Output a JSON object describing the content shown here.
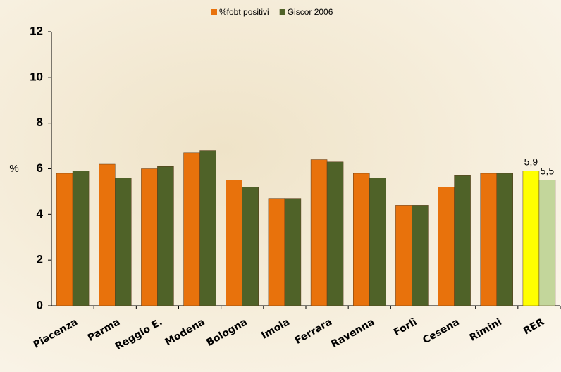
{
  "chart_data": {
    "type": "bar",
    "y_label": "%",
    "categories": [
      "Piacenza",
      "Parma",
      "Reggio E.",
      "Modena",
      "Bologna",
      "Imola",
      "Ferrara",
      "Ravenna",
      "Forlì",
      "Cesena",
      "Rimini",
      "RER"
    ],
    "series": [
      {
        "name": "%fobt positivi",
        "color": "#e8720c",
        "colors": [
          "#e8720c",
          "#e8720c",
          "#e8720c",
          "#e8720c",
          "#e8720c",
          "#e8720c",
          "#e8720c",
          "#e8720c",
          "#e8720c",
          "#e8720c",
          "#e8720c",
          "#ffff00"
        ],
        "values": [
          5.8,
          6.2,
          6.0,
          6.7,
          5.5,
          4.7,
          6.4,
          5.8,
          4.4,
          5.2,
          5.8,
          5.9
        ],
        "value_labels": [
          null,
          null,
          null,
          null,
          null,
          null,
          null,
          null,
          null,
          null,
          null,
          "5,9"
        ]
      },
      {
        "name": "Giscor 2006",
        "color": "#4f6228",
        "colors": [
          "#4f6228",
          "#4f6228",
          "#4f6228",
          "#4f6228",
          "#4f6228",
          "#4f6228",
          "#4f6228",
          "#4f6228",
          "#4f6228",
          "#4f6228",
          "#4f6228",
          "#c3d69b"
        ],
        "values": [
          5.9,
          5.6,
          6.1,
          6.8,
          5.2,
          4.7,
          6.3,
          5.6,
          4.4,
          5.7,
          5.8,
          5.5
        ],
        "value_labels": [
          null,
          null,
          null,
          null,
          null,
          null,
          null,
          null,
          null,
          null,
          null,
          "5,5"
        ]
      }
    ],
    "ylim": [
      0,
      12
    ],
    "yticks": [
      0,
      2,
      4,
      6,
      8,
      10,
      12
    ],
    "grid": false,
    "legend": "top"
  }
}
